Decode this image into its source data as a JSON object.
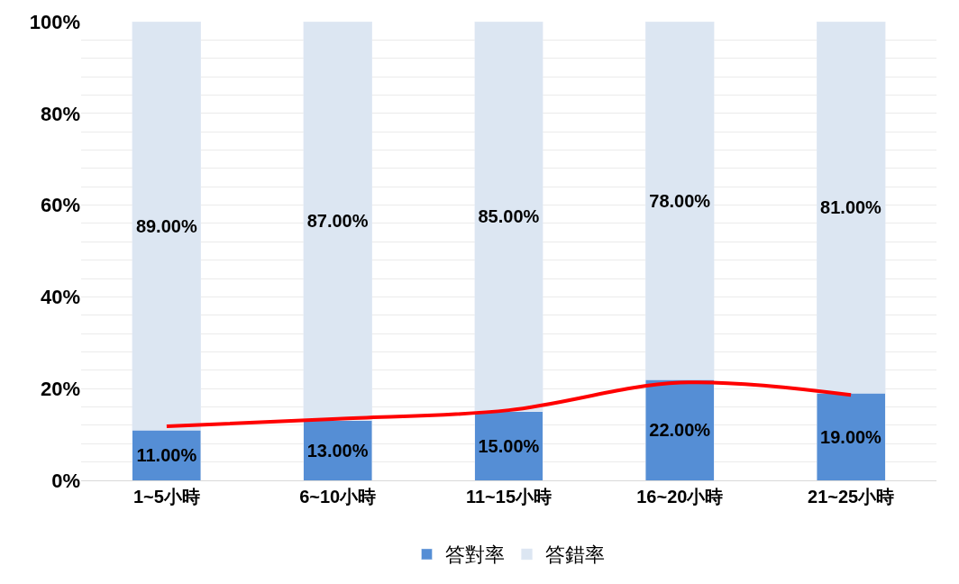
{
  "chart_data": {
    "type": "bar",
    "stacked": true,
    "categories": [
      "1~5小時",
      "6~10小時",
      "11~15小時",
      "16~20小時",
      "21~25小時"
    ],
    "series": [
      {
        "name": "答對率",
        "color": "#558ed5",
        "values": [
          11,
          13,
          15,
          22,
          19
        ],
        "value_labels": [
          "11.00%",
          "13.00%",
          "15.00%",
          "22.00%",
          "19.00%"
        ]
      },
      {
        "name": "答錯率",
        "color": "#dce6f2",
        "values": [
          89,
          87,
          85,
          78,
          81
        ],
        "value_labels": [
          "89.00%",
          "87.00%",
          "85.00%",
          "78.00%",
          "81.00%"
        ]
      },
      {
        "type": "line",
        "color": "#ff0000",
        "values": [
          11.8,
          13.4,
          15.3,
          21.3,
          18.6
        ]
      }
    ],
    "ylim": [
      0,
      100
    ],
    "yticks": [
      {
        "value": 0,
        "label": "0%"
      },
      {
        "value": 4,
        "label": null
      },
      {
        "value": 8,
        "label": null
      },
      {
        "value": 12,
        "label": null
      },
      {
        "value": 16,
        "label": null
      },
      {
        "value": 20,
        "label": "20%"
      },
      {
        "value": 24,
        "label": null
      },
      {
        "value": 28,
        "label": null
      },
      {
        "value": 32,
        "label": null
      },
      {
        "value": 36,
        "label": null
      },
      {
        "value": 40,
        "label": "40%"
      },
      {
        "value": 44,
        "label": null
      },
      {
        "value": 48,
        "label": null
      },
      {
        "value": 52,
        "label": null
      },
      {
        "value": 56,
        "label": null
      },
      {
        "value": 60,
        "label": "60%"
      },
      {
        "value": 64,
        "label": null
      },
      {
        "value": 68,
        "label": null
      },
      {
        "value": 72,
        "label": null
      },
      {
        "value": 76,
        "label": null
      },
      {
        "value": 80,
        "label": "80%"
      },
      {
        "value": 84,
        "label": null
      },
      {
        "value": 88,
        "label": null
      },
      {
        "value": 92,
        "label": null
      },
      {
        "value": 96,
        "label": null
      },
      {
        "value": 100,
        "label": "100%"
      }
    ],
    "grid": "y",
    "legend": "bottom"
  }
}
